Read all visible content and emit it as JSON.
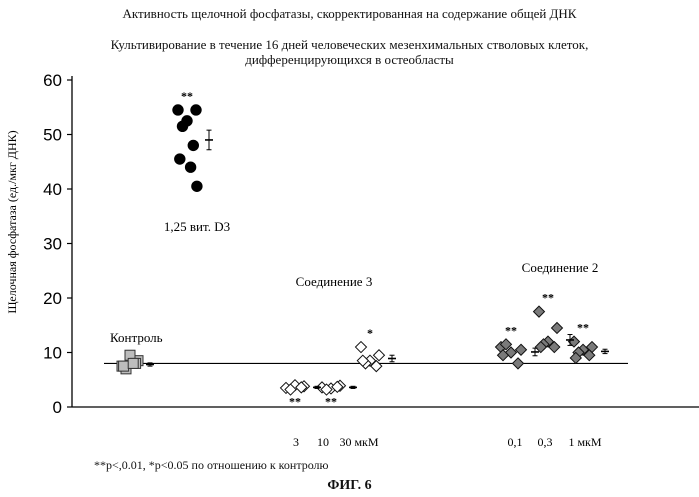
{
  "header": {
    "title": "Активность щелочной фосфатазы, скорректированная на содержание общей ДНК",
    "subtitle_line1": "Культивирование в течение 16 дней человеческих мезенхимальных стволовых клеток,",
    "subtitle_line2": "дифференцирующихся в остеобласты"
  },
  "footer": {
    "note": "**р<,0.01, *p<0.05 по отношению к контролю",
    "figure_label": "ФИГ. 6"
  },
  "chart_data": {
    "type": "scatter",
    "ylabel": "Щелочная фосфатаза (ед./мкг ДНК)",
    "ylim": [
      0,
      60
    ],
    "yticks": [
      "0",
      "10",
      "20",
      "30",
      "40",
      "50",
      "60"
    ],
    "reference_line_y": 8,
    "group_labels": {
      "control": "Контроль",
      "vitd3": "1,25 вит. D3",
      "compound3": "Соединение 3",
      "compound2": "Соединение 2"
    },
    "dose_labels": {
      "compound3": [
        "3",
        "10",
        "30 мкМ"
      ],
      "compound2": [
        "0,1",
        "0,3",
        "1 мкМ"
      ]
    },
    "groups": [
      {
        "id": "control",
        "marker": "square",
        "fill": "#bdbdbd",
        "values": [
          7.5,
          8.5,
          9.5,
          7.0,
          8.0,
          7.5,
          8.0
        ],
        "mean": 7.8,
        "sem": 0.3,
        "sig": ""
      },
      {
        "id": "vitd3",
        "marker": "circle",
        "fill": "#000000",
        "values": [
          54.5,
          54.5,
          52.5,
          51.5,
          48.0,
          45.5,
          44.0,
          40.5
        ],
        "mean": 49.0,
        "sem": 1.8,
        "sig": "**"
      },
      {
        "id": "c3_3",
        "marker": "diamond",
        "fill": "#ffffff",
        "values": [
          3.5,
          3.8,
          4.0,
          3.2,
          3.6
        ],
        "mean": 3.6,
        "sem": 0.2,
        "sig": "**"
      },
      {
        "id": "c3_10",
        "marker": "diamond",
        "fill": "#ffffff",
        "values": [
          3.6,
          3.9,
          3.4,
          3.2,
          3.7
        ],
        "mean": 3.6,
        "sem": 0.2,
        "sig": "**"
      },
      {
        "id": "c3_30",
        "marker": "diamond",
        "fill": "#ffffff",
        "values": [
          11.0,
          9.5,
          8.5,
          8.0,
          7.5,
          8.5
        ],
        "mean": 8.9,
        "sem": 0.6,
        "sig": "*"
      },
      {
        "id": "c2_01",
        "marker": "diamond",
        "fill": "#7a7a7a",
        "values": [
          11.0,
          10.5,
          10.0,
          11.5,
          8.0,
          9.5
        ],
        "mean": 10.1,
        "sem": 0.7,
        "sig": "**"
      },
      {
        "id": "c2_03",
        "marker": "diamond",
        "fill": "#7a7a7a",
        "values": [
          17.5,
          14.5,
          12.0,
          11.5,
          11.0,
          11.0
        ],
        "mean": 12.3,
        "sem": 1.0,
        "sig": "**"
      },
      {
        "id": "c2_1",
        "marker": "diamond",
        "fill": "#7a7a7a",
        "values": [
          12.0,
          11.0,
          10.5,
          10.0,
          9.5,
          9.0
        ],
        "mean": 10.2,
        "sem": 0.4,
        "sig": "**"
      }
    ]
  }
}
